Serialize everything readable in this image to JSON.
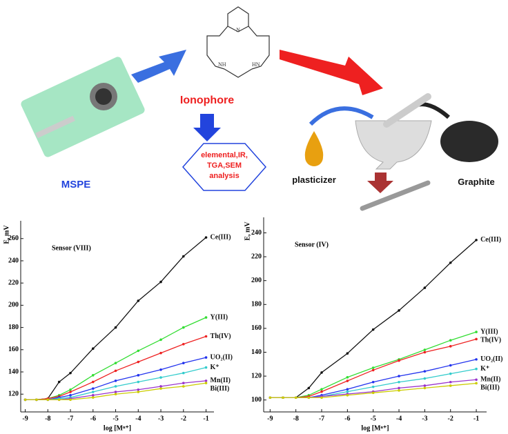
{
  "diagram": {
    "ionophore": "Ionophore",
    "analysis": [
      "elemental,IR,",
      "TGA,SEM",
      "analysis"
    ],
    "mspe": "MSPE",
    "plasticizer": "plasticizer",
    "graphite": "Graphite"
  },
  "chart_data": [
    {
      "type": "line",
      "annotation": "Sensor (VIII)",
      "ylabel": "E, mV",
      "xlabel": "log [Mⁿ⁺]",
      "x": [
        -9,
        -8.5,
        -8,
        -7.5,
        -7,
        -6,
        -5,
        -4,
        -3,
        -2,
        -1
      ],
      "xlim": [
        -9.2,
        -0.65
      ],
      "xticks": [
        -9,
        -8,
        -7,
        -6,
        -5,
        -4,
        -3,
        -2,
        -1
      ],
      "ylim": [
        104,
        276
      ],
      "yticks": [
        120,
        140,
        160,
        180,
        200,
        220,
        240,
        260
      ],
      "series": [
        {
          "name": "Ce(III)",
          "color": "#111111",
          "values": [
            115,
            115,
            116,
            131,
            139,
            161,
            180,
            204,
            221,
            244,
            261
          ]
        },
        {
          "name": "Y(III)",
          "color": "#33dd33",
          "values": [
            115,
            115,
            116,
            119,
            124,
            137,
            148,
            159,
            169,
            180,
            189
          ]
        },
        {
          "name": "Th(IV)",
          "color": "#ee2222",
          "values": [
            115,
            115,
            116,
            118,
            122,
            131,
            141,
            149,
            157,
            165,
            172
          ]
        },
        {
          "name": "UO₂(II)",
          "color": "#2233ee",
          "values": [
            115,
            115,
            115,
            117,
            119,
            125,
            132,
            137,
            142,
            148,
            153
          ]
        },
        {
          "name": "K⁺",
          "color": "#33cccc",
          "values": [
            115,
            115,
            115,
            116,
            117,
            122,
            127,
            131,
            135,
            139,
            144
          ]
        },
        {
          "name": "Mn(II)",
          "color": "#9933cc",
          "values": [
            115,
            115,
            115,
            115,
            116,
            119,
            122,
            124,
            127,
            130,
            132
          ]
        },
        {
          "name": "Bi(III)",
          "color": "#cccc00",
          "values": [
            115,
            115,
            115,
            115,
            115,
            117,
            120,
            122,
            125,
            127,
            130
          ]
        }
      ]
    },
    {
      "type": "line",
      "annotation": "Sensor (IV)",
      "ylabel": "E, mV",
      "xlabel": "log [Mⁿ⁺]",
      "x": [
        -9,
        -8.5,
        -8,
        -7.5,
        -7,
        -6,
        -5,
        -4,
        -3,
        -2,
        -1
      ],
      "xlim": [
        -9.25,
        -0.6
      ],
      "xticks": [
        -9,
        -8,
        -7,
        -6,
        -5,
        -4,
        -3,
        -2,
        -1
      ],
      "ylim": [
        90,
        253
      ],
      "yticks": [
        100,
        120,
        140,
        160,
        180,
        200,
        220,
        240
      ],
      "series": [
        {
          "name": "Ce(III)",
          "color": "#111111",
          "values": [
            102,
            102,
            102,
            110,
            123,
            139,
            159,
            175,
            194,
            215,
            234
          ]
        },
        {
          "name": "Y(III)",
          "color": "#33dd33",
          "values": [
            102,
            102,
            102,
            104,
            109,
            119,
            127,
            134,
            142,
            150,
            157
          ]
        },
        {
          "name": "Th(IV)",
          "color": "#ee2222",
          "values": [
            102,
            102,
            102,
            103,
            107,
            116,
            125,
            133,
            140,
            145,
            151
          ]
        },
        {
          "name": "UO₂(II)",
          "color": "#2233ee",
          "values": [
            102,
            102,
            102,
            102,
            104,
            109,
            115,
            120,
            124,
            129,
            134
          ]
        },
        {
          "name": "K⁺",
          "color": "#33cccc",
          "values": [
            102,
            102,
            102,
            102,
            103,
            107,
            111,
            115,
            118,
            122,
            126
          ]
        },
        {
          "name": "Mn(II)",
          "color": "#9933cc",
          "values": [
            102,
            102,
            102,
            102,
            103,
            105,
            107,
            110,
            112,
            115,
            117
          ]
        },
        {
          "name": "Bi(III)",
          "color": "#cccc00",
          "values": [
            102,
            102,
            102,
            102,
            102,
            104,
            106,
            108,
            110,
            112,
            114
          ]
        }
      ]
    }
  ]
}
